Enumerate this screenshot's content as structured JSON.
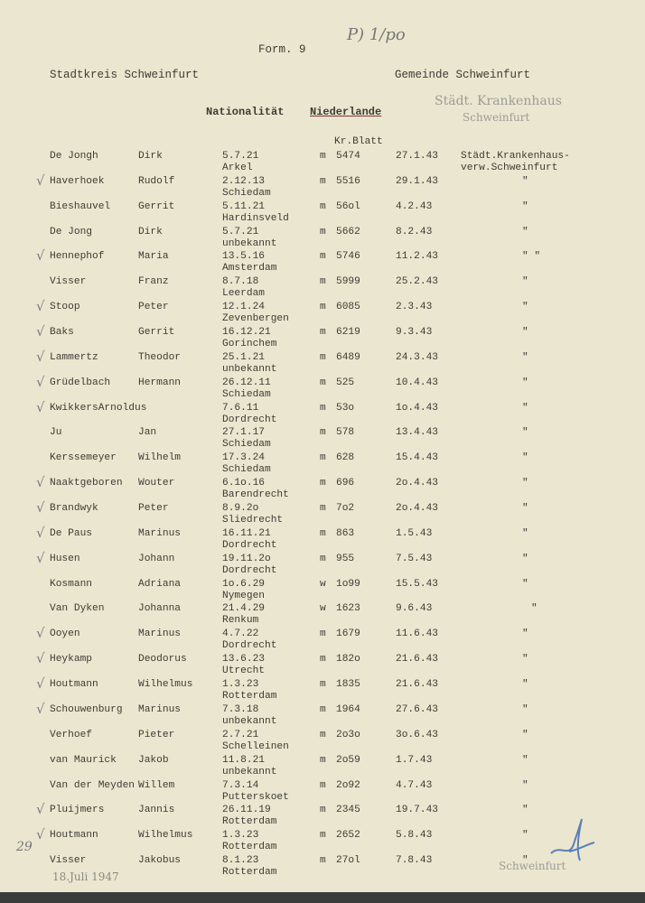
{
  "header": {
    "form": "Form. 9",
    "handwritten_note": "P) 1/po",
    "stadtkreis": "Stadtkreis  Schweinfurt",
    "gemeinde": "Gemeinde Schweinfurt",
    "nationality_label": "Nationalität",
    "nationality_value": "Niederlande",
    "column_kr_blatt": "Kr.Blatt",
    "stamp_top_line1": "Städt. Krankenhaus",
    "stamp_top_line2": "Schweinfurt"
  },
  "rows": [
    {
      "surname": "De Jongh",
      "first": "Dirk",
      "dob": "5.7.21",
      "place": "Arkel",
      "sex": "m",
      "nr": "5474",
      "date": "27.1.43",
      "remark": "Städt.Krankenhaus-",
      "remark2": "verw.Schweinfurt",
      "check": false
    },
    {
      "surname": "Haverhoek",
      "first": "Rudolf",
      "dob": "2.12.13",
      "place": "Schiedam",
      "sex": "m",
      "nr": "5516",
      "date": "29.1.43",
      "remark": "\"",
      "check": true
    },
    {
      "surname": "Bieshauvel",
      "first": "Gerrit",
      "dob": "5.11.21",
      "place": "Hardinsveld",
      "sex": "m",
      "nr": "56ol",
      "date": "4.2.43",
      "remark": "\"",
      "check": false
    },
    {
      "surname": "De Jong",
      "first": "Dirk",
      "dob": "5.7.21",
      "place": "unbekannt",
      "sex": "m",
      "nr": "5662",
      "date": "8.2.43",
      "remark": "\"",
      "check": false
    },
    {
      "surname": "Hennephof",
      "first": "Maria",
      "dob": "13.5.16",
      "place": "Amsterdam",
      "sex": "m",
      "nr": "5746",
      "date": "11.2.43",
      "remark": "\" \"",
      "check": true
    },
    {
      "surname": "Visser",
      "first": "Franz",
      "dob": "8.7.18",
      "place": "Leerdam",
      "sex": "m",
      "nr": "5999",
      "date": "25.2.43",
      "remark": "\"",
      "check": false
    },
    {
      "surname": "Stoop",
      "first": "Peter",
      "dob": "12.1.24",
      "place": "Zevenbergen",
      "sex": "m",
      "nr": "6085",
      "date": "2.3.43",
      "remark": "\"",
      "check": true
    },
    {
      "surname": "Baks",
      "first": "Gerrit",
      "dob": "16.12.21",
      "place": "Gorinchem",
      "sex": "m",
      "nr": "6219",
      "date": "9.3.43",
      "remark": "\"",
      "check": true
    },
    {
      "surname": "Lammertz",
      "first": "Theodor",
      "dob": "25.1.21",
      "place": "unbekannt",
      "sex": "m",
      "nr": "6489",
      "date": "24.3.43",
      "remark": "\"",
      "check": true
    },
    {
      "surname": "Grüdelbach",
      "first": "Hermann",
      "dob": "26.12.11",
      "place": "Schiedam",
      "sex": "m",
      "nr": "525",
      "date": "10.4.43",
      "remark": "\"",
      "check": true
    },
    {
      "surname": "KwikkersArnoldus",
      "first": "",
      "dob": "7.6.11",
      "place": "Dordrecht",
      "sex": "m",
      "nr": "53o",
      "date": "1o.4.43",
      "remark": "\"",
      "check": true
    },
    {
      "surname": "Ju",
      "first": "Jan",
      "dob": "27.1.17",
      "place": "Schiedam",
      "sex": "m",
      "nr": "578",
      "date": "13.4.43",
      "remark": "\"",
      "check": false
    },
    {
      "surname": "Kerssemeyer",
      "first": "Wilhelm",
      "dob": "17.3.24",
      "place": "Schiedam",
      "sex": "m",
      "nr": "628",
      "date": "15.4.43",
      "remark": "\"",
      "check": false
    },
    {
      "surname": "Naaktgeboren",
      "first": "Wouter",
      "dob": "6.1o.16",
      "place": "Barendrecht",
      "sex": "m",
      "nr": "696",
      "date": "2o.4.43",
      "remark": "\"",
      "check": true
    },
    {
      "surname": "Brandwyk",
      "first": "Peter",
      "dob": "8.9.2o",
      "place": "Sliedrecht",
      "sex": "m",
      "nr": "7o2",
      "date": "2o.4.43",
      "remark": "\"",
      "check": true
    },
    {
      "surname": "De Paus",
      "first": "Marinus",
      "dob": "16.11.21",
      "place": "Dordrecht",
      "sex": "m",
      "nr": "863",
      "date": "1.5.43",
      "remark": "\"",
      "check": true
    },
    {
      "surname": "Husen",
      "first": "Johann",
      "dob": "19.11.2o",
      "place": "Dordrecht",
      "sex": "m",
      "nr": "955",
      "date": "7.5.43",
      "remark": "\"",
      "check": true
    },
    {
      "surname": "Kosmann",
      "first": "Adriana",
      "dob": "1o.6.29",
      "place": "Nymegen",
      "sex": "w",
      "nr": "1o99",
      "date": "15.5.43",
      "remark": "\"",
      "check": false
    },
    {
      "surname": "Van Dyken",
      "first": "Johanna",
      "dob": "21.4.29",
      "place": "Renkum",
      "sex": "w",
      "nr": "1623",
      "date": "9.6.43",
      "remark": "\"",
      "check": false
    },
    {
      "surname": "Ooyen",
      "first": "Marinus",
      "dob": "4.7.22",
      "place": "Dordrecht",
      "sex": "m",
      "nr": "1679",
      "date": "11.6.43",
      "remark": "\"",
      "check": true
    },
    {
      "surname": "Heykamp",
      "first": "Deodorus",
      "dob": "13.6.23",
      "place": "Utrecht",
      "sex": "m",
      "nr": "182o",
      "date": "21.6.43",
      "remark": "\"",
      "check": true
    },
    {
      "surname": "Houtmann",
      "first": "Wilhelmus",
      "dob": "1.3.23",
      "place": "Rotterdam",
      "sex": "m",
      "nr": "1835",
      "date": "21.6.43",
      "remark": "\"",
      "check": true
    },
    {
      "surname": "Schouwenburg",
      "first": "Marinus",
      "dob": "7.3.18",
      "place": "unbekannt",
      "sex": "m",
      "nr": "1964",
      "date": "27.6.43",
      "remark": "\"",
      "check": true
    },
    {
      "surname": "Verhoef",
      "first": "Pieter",
      "dob": "2.7.21",
      "place": "Schelleinen",
      "sex": "m",
      "nr": "2o3o",
      "date": "3o.6.43",
      "remark": "\"",
      "check": false
    },
    {
      "surname": "van Maurick",
      "first": "Jakob",
      "dob": "11.8.21",
      "place": "unbekannt",
      "sex": "m",
      "nr": "2o59",
      "date": "1.7.43",
      "remark": "\"",
      "check": false
    },
    {
      "surname": "Van der Meyden",
      "first": "Willem",
      "dob": "7.3.14",
      "place": "Putterskoet",
      "sex": "m",
      "nr": "2o92",
      "date": "4.7.43",
      "remark": "\"",
      "check": false
    },
    {
      "surname": "Pluijmers",
      "first": "Jannis",
      "dob": "26.11.19",
      "place": "Rotterdam",
      "sex": "m",
      "nr": "2345",
      "date": "19.7.43",
      "remark": "\"",
      "check": true
    },
    {
      "surname": "Houtmann",
      "first": "Wilhelmus",
      "dob": "1.3.23",
      "place": "Rotterdam",
      "sex": "m",
      "nr": "2652",
      "date": "5.8.43",
      "remark": "\"",
      "check": true
    },
    {
      "surname": "Visser",
      "first": "Jakobus",
      "dob": "8.1.23",
      "place": "Rotterdam",
      "sex": "m",
      "nr": "27ol",
      "date": "7.8.43",
      "remark": "\"",
      "check": false
    }
  ],
  "footer": {
    "date_stamp": "18.Juli 1947",
    "margin_note": "29",
    "stamp_bottom": "Schweinfurt"
  },
  "colors": {
    "paper": "#ebe6cf",
    "ink": "#3d3b36",
    "stamp": "#9c9c98",
    "signature": "#5a7fb8"
  }
}
